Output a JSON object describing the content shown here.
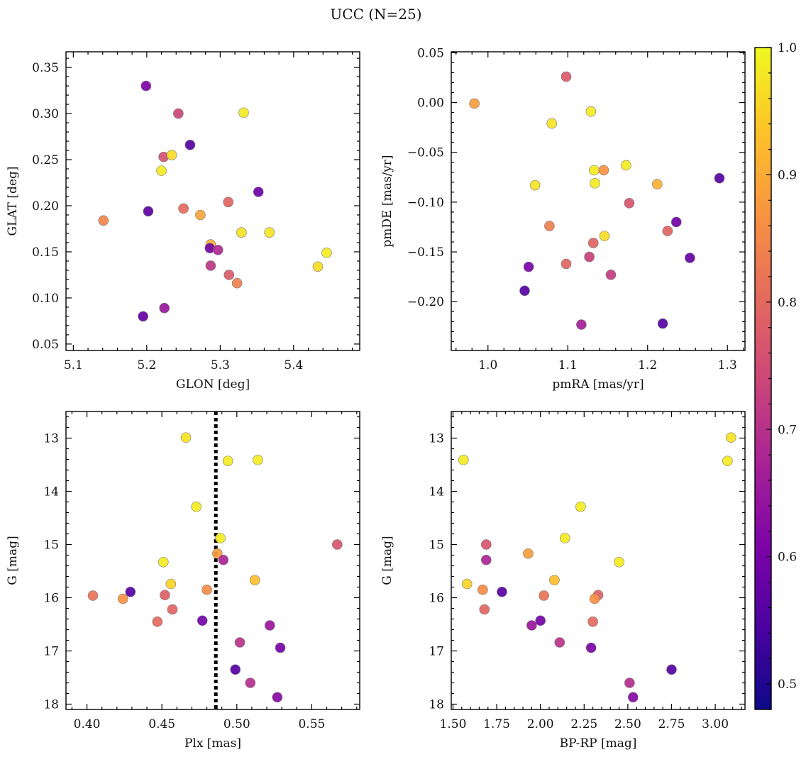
{
  "figure": {
    "title": "UCC (N=25)"
  },
  "colorbar": {
    "colormap": "plasma",
    "range": [
      0.48,
      1.0
    ],
    "ticks": [
      0.5,
      0.6,
      0.7,
      0.8,
      0.9,
      1.0
    ],
    "tick_labels": [
      "0.5",
      "0.6",
      "0.7",
      "0.8",
      "0.9",
      "1.0"
    ]
  },
  "chart_data": [
    {
      "type": "scatter",
      "name": "glon-glat",
      "xlabel": "GLON [deg]",
      "ylabel": "GLAT [deg]",
      "xlim": [
        5.09,
        5.49
      ],
      "ylim": [
        0.043,
        0.367
      ],
      "xticks": [
        5.1,
        5.2,
        5.3,
        5.4
      ],
      "xtick_labels": [
        "5.1",
        "5.2",
        "5.3",
        "5.4"
      ],
      "yticks": [
        0.05,
        0.1,
        0.15,
        0.2,
        0.25,
        0.3,
        0.35
      ],
      "ytick_labels": [
        "0.05",
        "0.10",
        "0.15",
        "0.20",
        "0.25",
        "0.30",
        "0.35"
      ],
      "points": [
        {
          "x": 5.199,
          "y": 0.33,
          "c": 0.57
        },
        {
          "x": 5.243,
          "y": 0.3,
          "c": 0.71
        },
        {
          "x": 5.332,
          "y": 0.301,
          "c": 0.98
        },
        {
          "x": 5.259,
          "y": 0.266,
          "c": 0.51
        },
        {
          "x": 5.223,
          "y": 0.253,
          "c": 0.73
        },
        {
          "x": 5.234,
          "y": 0.255,
          "c": 0.96
        },
        {
          "x": 5.22,
          "y": 0.238,
          "c": 0.98
        },
        {
          "x": 5.352,
          "y": 0.215,
          "c": 0.54
        },
        {
          "x": 5.311,
          "y": 0.204,
          "c": 0.77
        },
        {
          "x": 5.202,
          "y": 0.194,
          "c": 0.52
        },
        {
          "x": 5.25,
          "y": 0.197,
          "c": 0.78
        },
        {
          "x": 5.273,
          "y": 0.19,
          "c": 0.88
        },
        {
          "x": 5.141,
          "y": 0.184,
          "c": 0.83
        },
        {
          "x": 5.329,
          "y": 0.171,
          "c": 0.97
        },
        {
          "x": 5.367,
          "y": 0.171,
          "c": 0.97
        },
        {
          "x": 5.287,
          "y": 0.158,
          "c": 0.9
        },
        {
          "x": 5.286,
          "y": 0.154,
          "c": 0.55
        },
        {
          "x": 5.297,
          "y": 0.152,
          "c": 0.65
        },
        {
          "x": 5.445,
          "y": 0.149,
          "c": 0.98
        },
        {
          "x": 5.287,
          "y": 0.135,
          "c": 0.68
        },
        {
          "x": 5.433,
          "y": 0.134,
          "c": 0.96
        },
        {
          "x": 5.312,
          "y": 0.125,
          "c": 0.75
        },
        {
          "x": 5.323,
          "y": 0.116,
          "c": 0.82
        },
        {
          "x": 5.195,
          "y": 0.08,
          "c": 0.53
        },
        {
          "x": 5.224,
          "y": 0.089,
          "c": 0.61
        }
      ]
    },
    {
      "type": "scatter",
      "name": "pmra-pmde",
      "xlabel": "pmRA [mas/yr]",
      "ylabel": "pmDE [mas/yr]",
      "xlim": [
        0.954,
        1.322
      ],
      "ylim": [
        -0.249,
        0.051
      ],
      "xticks": [
        1.0,
        1.1,
        1.2,
        1.3
      ],
      "xtick_labels": [
        "1.0",
        "1.1",
        "1.2",
        "1.3"
      ],
      "yticks": [
        -0.2,
        -0.15,
        -0.1,
        -0.05,
        0.0,
        0.05
      ],
      "ytick_labels": [
        "−0.20",
        "−0.15",
        "−0.10",
        "−0.05",
        "0.00",
        "0.05"
      ],
      "points": [
        {
          "x": 1.098,
          "y": 0.026,
          "c": 0.75
        },
        {
          "x": 0.983,
          "y": -0.001,
          "c": 0.87
        },
        {
          "x": 1.129,
          "y": -0.009,
          "c": 0.98
        },
        {
          "x": 1.08,
          "y": -0.021,
          "c": 0.97
        },
        {
          "x": 1.133,
          "y": -0.068,
          "c": 0.98
        },
        {
          "x": 1.145,
          "y": -0.068,
          "c": 0.85
        },
        {
          "x": 1.173,
          "y": -0.063,
          "c": 0.98
        },
        {
          "x": 1.059,
          "y": -0.083,
          "c": 0.97
        },
        {
          "x": 1.134,
          "y": -0.081,
          "c": 0.98
        },
        {
          "x": 1.212,
          "y": -0.082,
          "c": 0.9
        },
        {
          "x": 1.29,
          "y": -0.076,
          "c": 0.51
        },
        {
          "x": 1.177,
          "y": -0.101,
          "c": 0.74
        },
        {
          "x": 1.077,
          "y": -0.124,
          "c": 0.82
        },
        {
          "x": 1.236,
          "y": -0.12,
          "c": 0.55
        },
        {
          "x": 1.225,
          "y": -0.129,
          "c": 0.77
        },
        {
          "x": 1.146,
          "y": -0.134,
          "c": 0.96
        },
        {
          "x": 1.132,
          "y": -0.141,
          "c": 0.77
        },
        {
          "x": 1.127,
          "y": -0.155,
          "c": 0.7
        },
        {
          "x": 1.253,
          "y": -0.156,
          "c": 0.53
        },
        {
          "x": 1.098,
          "y": -0.162,
          "c": 0.77
        },
        {
          "x": 1.051,
          "y": -0.165,
          "c": 0.56
        },
        {
          "x": 1.154,
          "y": -0.173,
          "c": 0.69
        },
        {
          "x": 1.046,
          "y": -0.189,
          "c": 0.51
        },
        {
          "x": 1.117,
          "y": -0.223,
          "c": 0.63
        },
        {
          "x": 1.219,
          "y": -0.222,
          "c": 0.51
        }
      ]
    },
    {
      "type": "scatter",
      "name": "plx-g",
      "xlabel": "Plx [mas]",
      "ylabel": "G [mag]",
      "xlim": [
        0.386,
        0.582
      ],
      "ylim": [
        18.1,
        12.5
      ],
      "y_inverted": true,
      "xticks": [
        0.4,
        0.45,
        0.5,
        0.55
      ],
      "xtick_labels": [
        "0.40",
        "0.45",
        "0.50",
        "0.55"
      ],
      "yticks": [
        13,
        14,
        15,
        16,
        17,
        18
      ],
      "ytick_labels": [
        "13",
        "14",
        "15",
        "16",
        "17",
        "18"
      ],
      "vline": {
        "x": 0.486,
        "style": "dotted"
      },
      "points": [
        {
          "x": 0.466,
          "y": 12.99,
          "c": 0.97
        },
        {
          "x": 0.494,
          "y": 13.43,
          "c": 0.98
        },
        {
          "x": 0.514,
          "y": 13.41,
          "c": 0.98
        },
        {
          "x": 0.473,
          "y": 14.29,
          "c": 0.98
        },
        {
          "x": 0.489,
          "y": 14.88,
          "c": 0.98
        },
        {
          "x": 0.567,
          "y": 15.0,
          "c": 0.74
        },
        {
          "x": 0.487,
          "y": 15.17,
          "c": 0.87
        },
        {
          "x": 0.491,
          "y": 15.29,
          "c": 0.64
        },
        {
          "x": 0.451,
          "y": 15.33,
          "c": 0.98
        },
        {
          "x": 0.512,
          "y": 15.67,
          "c": 0.92
        },
        {
          "x": 0.456,
          "y": 15.74,
          "c": 0.95
        },
        {
          "x": 0.48,
          "y": 15.85,
          "c": 0.84
        },
        {
          "x": 0.429,
          "y": 15.89,
          "c": 0.51
        },
        {
          "x": 0.404,
          "y": 15.96,
          "c": 0.8
        },
        {
          "x": 0.452,
          "y": 15.95,
          "c": 0.76
        },
        {
          "x": 0.424,
          "y": 16.02,
          "c": 0.85
        },
        {
          "x": 0.457,
          "y": 16.22,
          "c": 0.77
        },
        {
          "x": 0.477,
          "y": 16.43,
          "c": 0.55
        },
        {
          "x": 0.447,
          "y": 16.45,
          "c": 0.78
        },
        {
          "x": 0.522,
          "y": 16.52,
          "c": 0.61
        },
        {
          "x": 0.502,
          "y": 16.84,
          "c": 0.67
        },
        {
          "x": 0.529,
          "y": 16.94,
          "c": 0.56
        },
        {
          "x": 0.499,
          "y": 17.35,
          "c": 0.51
        },
        {
          "x": 0.509,
          "y": 17.6,
          "c": 0.66
        },
        {
          "x": 0.527,
          "y": 17.87,
          "c": 0.58
        }
      ]
    },
    {
      "type": "scatter",
      "name": "bprp-g",
      "xlabel": "BP-RP [mag]",
      "ylabel": "G [mag]",
      "xlim": [
        1.49,
        3.17
      ],
      "ylim": [
        18.1,
        12.5
      ],
      "y_inverted": true,
      "xticks": [
        1.5,
        1.75,
        2.0,
        2.25,
        2.5,
        2.75,
        3.0
      ],
      "xtick_labels": [
        "1.50",
        "1.75",
        "2.00",
        "2.25",
        "2.50",
        "2.75",
        "3.00"
      ],
      "yticks": [
        13,
        14,
        15,
        16,
        17,
        18
      ],
      "ytick_labels": [
        "13",
        "14",
        "15",
        "16",
        "17",
        "18"
      ],
      "points": [
        {
          "x": 3.09,
          "y": 12.99,
          "c": 0.97
        },
        {
          "x": 1.56,
          "y": 13.41,
          "c": 0.98
        },
        {
          "x": 3.07,
          "y": 13.43,
          "c": 0.98
        },
        {
          "x": 2.23,
          "y": 14.29,
          "c": 0.98
        },
        {
          "x": 2.14,
          "y": 14.88,
          "c": 0.98
        },
        {
          "x": 1.69,
          "y": 15.0,
          "c": 0.74
        },
        {
          "x": 1.93,
          "y": 15.17,
          "c": 0.87
        },
        {
          "x": 1.69,
          "y": 15.29,
          "c": 0.64
        },
        {
          "x": 2.45,
          "y": 15.33,
          "c": 0.98
        },
        {
          "x": 2.08,
          "y": 15.67,
          "c": 0.92
        },
        {
          "x": 1.58,
          "y": 15.74,
          "c": 0.95
        },
        {
          "x": 1.67,
          "y": 15.85,
          "c": 0.84
        },
        {
          "x": 1.78,
          "y": 15.89,
          "c": 0.51
        },
        {
          "x": 2.02,
          "y": 15.96,
          "c": 0.8
        },
        {
          "x": 2.33,
          "y": 15.95,
          "c": 0.76
        },
        {
          "x": 2.31,
          "y": 16.02,
          "c": 0.85
        },
        {
          "x": 1.68,
          "y": 16.22,
          "c": 0.77
        },
        {
          "x": 2.0,
          "y": 16.43,
          "c": 0.55
        },
        {
          "x": 2.3,
          "y": 16.45,
          "c": 0.78
        },
        {
          "x": 1.95,
          "y": 16.52,
          "c": 0.61
        },
        {
          "x": 2.11,
          "y": 16.84,
          "c": 0.67
        },
        {
          "x": 2.29,
          "y": 16.94,
          "c": 0.56
        },
        {
          "x": 2.75,
          "y": 17.35,
          "c": 0.51
        },
        {
          "x": 2.51,
          "y": 17.6,
          "c": 0.66
        },
        {
          "x": 2.53,
          "y": 17.87,
          "c": 0.58
        }
      ]
    }
  ]
}
